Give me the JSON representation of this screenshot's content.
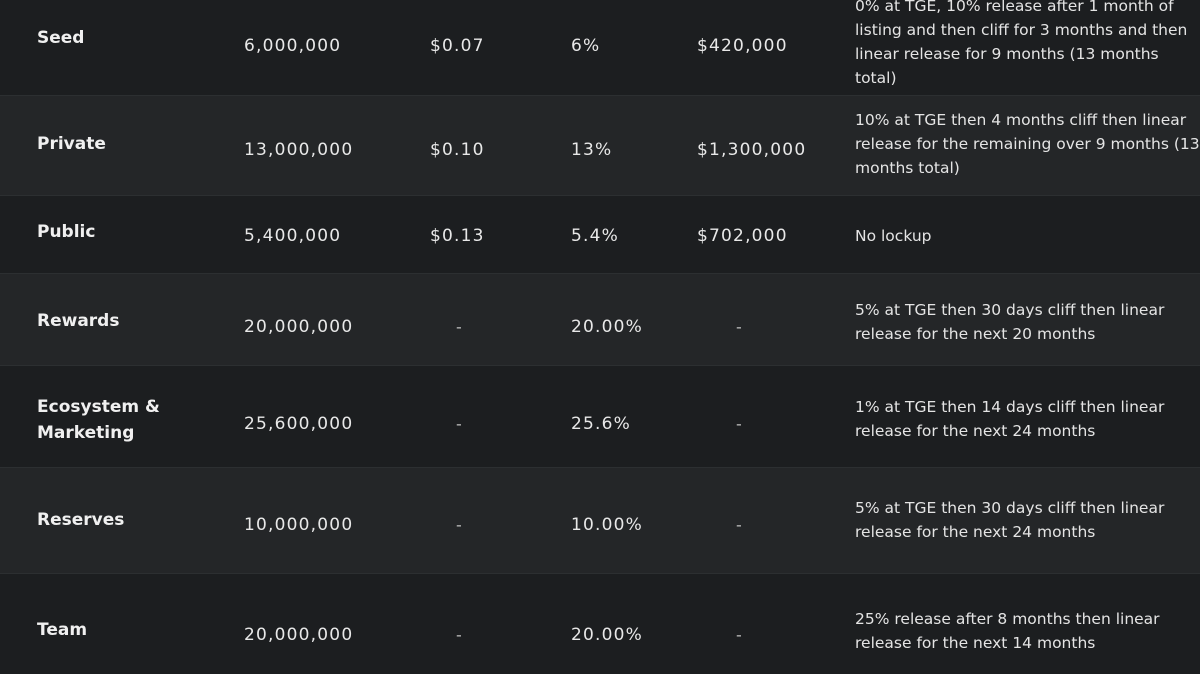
{
  "rows": [
    {
      "name": "Seed",
      "supply": "6,000,000",
      "price": "$0.07",
      "percent": "6%",
      "raise": "$420,000",
      "vesting": "0% at TGE, 10% release after 1 month of listing and then cliff for 3 months and then linear release for 9 months (13 months total)"
    },
    {
      "name": "Private",
      "supply": "13,000,000",
      "price": "$0.10",
      "percent": "13%",
      "raise": "$1,300,000",
      "vesting": "10% at TGE then 4 months cliff then linear release for the remaining over 9 months (13 months total)"
    },
    {
      "name": "Public",
      "supply": "5,400,000",
      "price": "$0.13",
      "percent": "5.4%",
      "raise": "$702,000",
      "vesting": "No lockup"
    },
    {
      "name": "Rewards",
      "supply": "20,000,000",
      "price": "-",
      "percent": "20.00%",
      "raise": "-",
      "vesting": "5% at TGE then 30 days cliff then linear release for the next 20 months"
    },
    {
      "name": "Ecosystem & Marketing",
      "supply": "25,600,000",
      "price": "-",
      "percent": "25.6%",
      "raise": "-",
      "vesting": "1% at TGE then 14 days cliff then linear release for the next 24 months"
    },
    {
      "name": "Reserves",
      "supply": "10,000,000",
      "price": "-",
      "percent": "10.00%",
      "raise": "-",
      "vesting": "5% at TGE then 30 days cliff then linear release for the next 24 months"
    },
    {
      "name": "Team",
      "supply": "20,000,000",
      "price": "-",
      "percent": "20.00%",
      "raise": "-",
      "vesting": "25% release after 8 months then linear release for the next 14 months"
    }
  ]
}
